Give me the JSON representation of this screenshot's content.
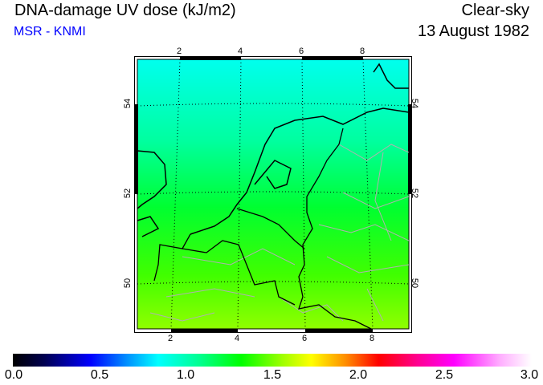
{
  "header": {
    "title": "DNA-damage UV dose (kJ/m2)",
    "source": "MSR - KNMI",
    "condition": "Clear-sky",
    "date": "13 August 1982"
  },
  "map": {
    "lon_ticks_top": [
      "2",
      "4",
      "6",
      "8"
    ],
    "lon_ticks_bottom": [
      "2",
      "4",
      "6",
      "8"
    ],
    "lat_ticks_left": [
      "54",
      "52",
      "50"
    ],
    "lat_ticks_right": [
      "54",
      "52",
      "50"
    ],
    "field_colors": {
      "north": "#00ffe8",
      "middle": "#00ff30",
      "south": "#90ff00"
    }
  },
  "colorbar": {
    "labels": [
      "0.0",
      "0.5",
      "1.0",
      "1.5",
      "2.0",
      "2.5",
      "3.0"
    ],
    "min": 0,
    "max": 3
  }
}
